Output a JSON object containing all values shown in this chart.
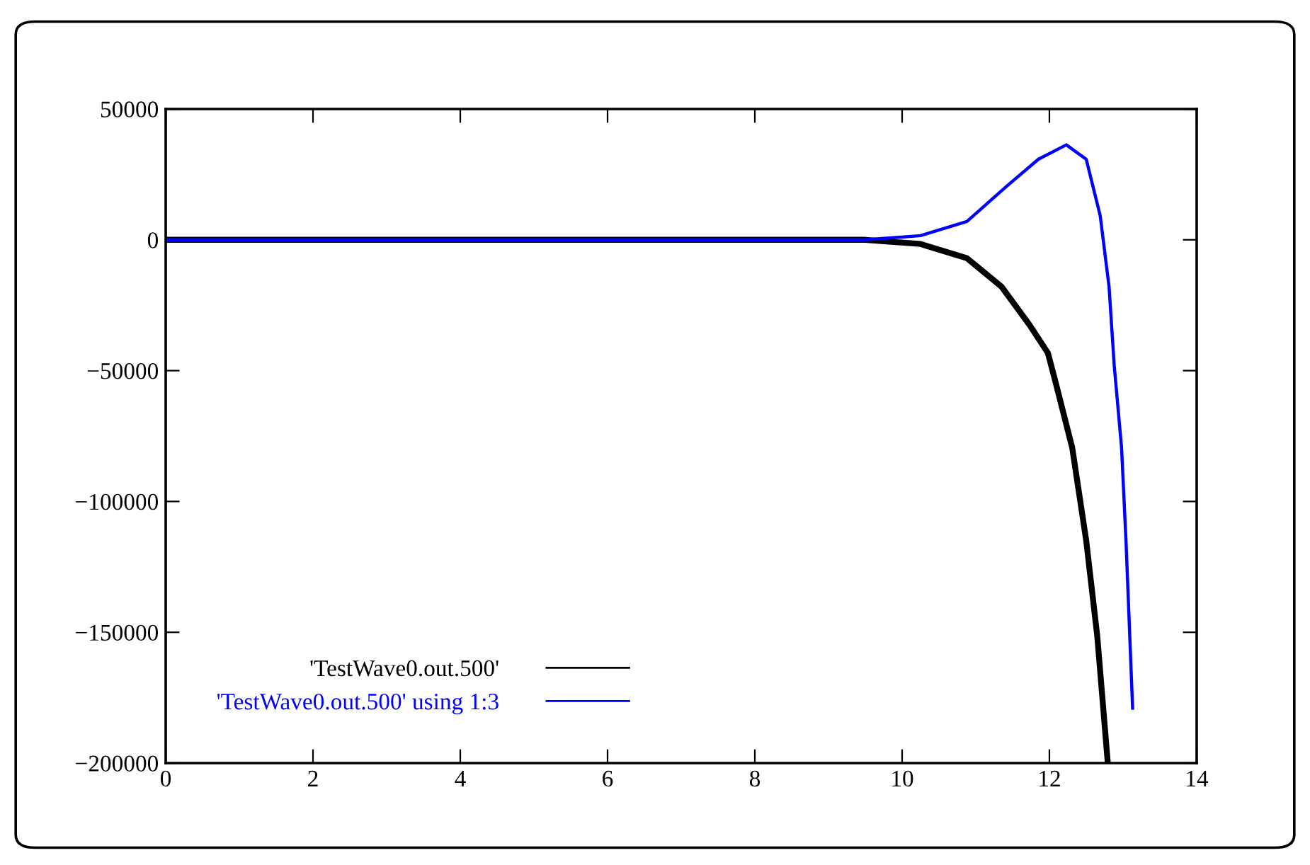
{
  "chart_data": {
    "type": "line",
    "x": [
      0,
      2,
      4,
      6,
      8,
      9,
      9.5,
      10.25,
      10.88,
      11.35,
      11.73,
      11.98,
      12.08,
      12.31,
      12.5,
      12.65,
      12.79
    ],
    "series": [
      {
        "name": "'TestWave0.out.500'",
        "color": "#000000",
        "values": [
          0,
          0,
          0,
          0,
          0,
          0,
          0,
          -1600,
          -7000,
          -17900,
          -32500,
          -43300,
          -54000,
          -79500,
          -115000,
          -151500,
          -199000
        ]
      },
      {
        "name": "'TestWave0.out.500' using 1:3",
        "color": "#0000ff",
        "x": [
          0,
          2,
          4,
          6,
          8,
          9,
          9.5,
          10.25,
          10.88,
          11.4,
          11.85,
          12.23,
          12.5,
          12.69,
          12.81,
          12.88,
          12.98,
          13.04,
          13.13
        ],
        "values": [
          0,
          0,
          0,
          0,
          0,
          0,
          0,
          1600,
          7000,
          20000,
          30800,
          36300,
          30800,
          9200,
          -17900,
          -48000,
          -79500,
          -115000,
          -179000
        ]
      }
    ],
    "xlim": [
      0,
      14
    ],
    "xticks": [
      0,
      2,
      4,
      6,
      8,
      10,
      12,
      14
    ],
    "ylim": [
      -200000,
      50000
    ],
    "yticks": [
      {
        "value": -200000,
        "label": "−200000"
      },
      {
        "value": -150000,
        "label": "−150000"
      },
      {
        "value": -100000,
        "label": "−100000"
      },
      {
        "value": -50000,
        "label": "−50000"
      },
      0,
      50000
    ],
    "grid": false,
    "legend": "bottom left",
    "marker": "none",
    "line_style": "solid"
  }
}
